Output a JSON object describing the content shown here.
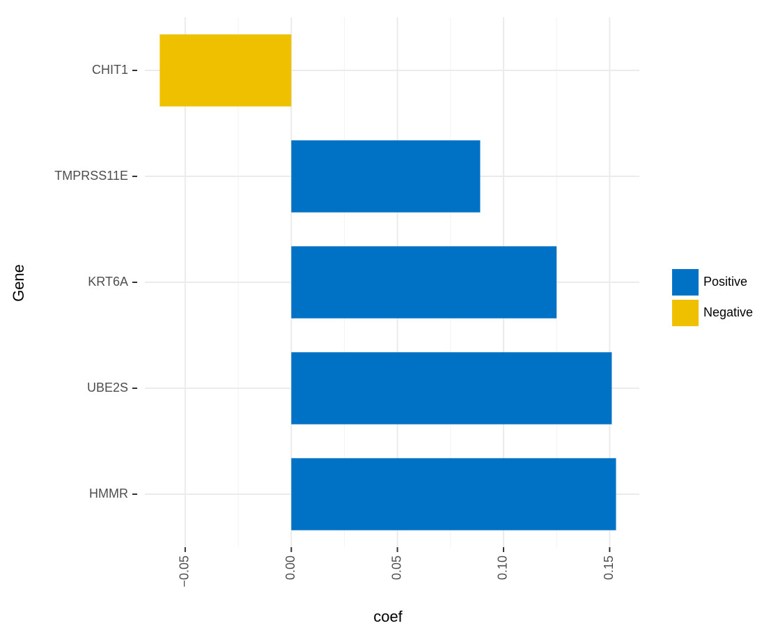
{
  "chart_data": {
    "type": "barh",
    "x_label": "coef",
    "y_label": "Gene",
    "categories": [
      "CHIT1",
      "TMPRSS11E",
      "KRT6A",
      "UBE2S",
      "HMMR"
    ],
    "series": [
      {
        "name": "Positive",
        "color": "#0072c6",
        "values": [
          null,
          0.089,
          0.125,
          0.151,
          0.153
        ]
      },
      {
        "name": "Negative",
        "color": "#efc000",
        "values": [
          -0.062,
          null,
          null,
          null,
          null
        ]
      }
    ],
    "xlim": [
      -0.069,
      0.164
    ],
    "xticks": [
      {
        "value": -0.05,
        "label": "−0.05"
      },
      {
        "value": 0,
        "label": "0.00"
      },
      0.05,
      {
        "value": 0.1,
        "label": "0.10"
      },
      0.15
    ],
    "grid": true,
    "legend": "right"
  }
}
